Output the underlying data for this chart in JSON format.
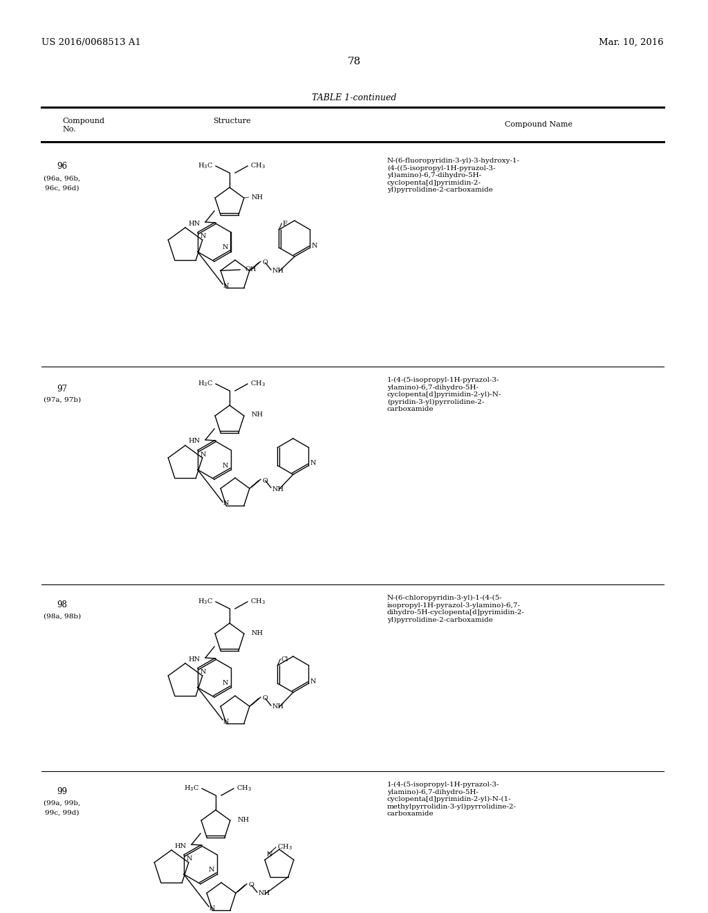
{
  "page_header_left": "US 2016/0068513 A1",
  "page_header_right": "Mar. 10, 2016",
  "page_number": "78",
  "table_title": "TABLE 1-continued",
  "col1_header": "Compound\nNo.",
  "col2_header": "Structure",
  "col3_header": "Compound Name",
  "background_color": "#ffffff",
  "text_color": "#000000",
  "compounds": [
    {
      "id": "96",
      "id_sub": "(96a, 96b,\n96c, 96d)",
      "name": "N-(6-fluoropyridin-3-yl)-3-hydroxy-1-\n(4-((5-isopropyl-1H-pyrazol-3-\nyl)amino)-6,7-dihydro-5H-\ncyclopenta[d]pyrimidin-2-\nyl)pyrrolidine-2-carboxamide"
    },
    {
      "id": "97",
      "id_sub": "(97a, 97b)",
      "name": "1-(4-(5-isopropyl-1H-pyrazol-3-\nylamino)-6,7-dihydro-5H-\ncyclopenta[d]pyrimidin-2-yl)-N-\n(pyridin-3-yl)pyrrolidine-2-\ncarboxamide"
    },
    {
      "id": "98",
      "id_sub": "(98a, 98b)",
      "name": "N-(6-chloropyridin-3-yl)-1-(4-(5-\nisopropyl-1H-pyrazol-3-ylamino)-6,7-\ndihydro-5H-cyclopenta[d]pyrimidin-2-\nyl)pyrrolidine-2-carboxamide"
    },
    {
      "id": "99",
      "id_sub": "(99a, 99b,\n99c, 99d)",
      "name": "1-(4-(5-isopropyl-1H-pyrazol-3-\nylamino)-6,7-dihydro-5H-\ncyclopenta[d]pyrimidin-2-yl)-N-(1-\nmethylpyrrolidin-3-yl)pyrrolidine-2-\ncarboxamide"
    }
  ]
}
